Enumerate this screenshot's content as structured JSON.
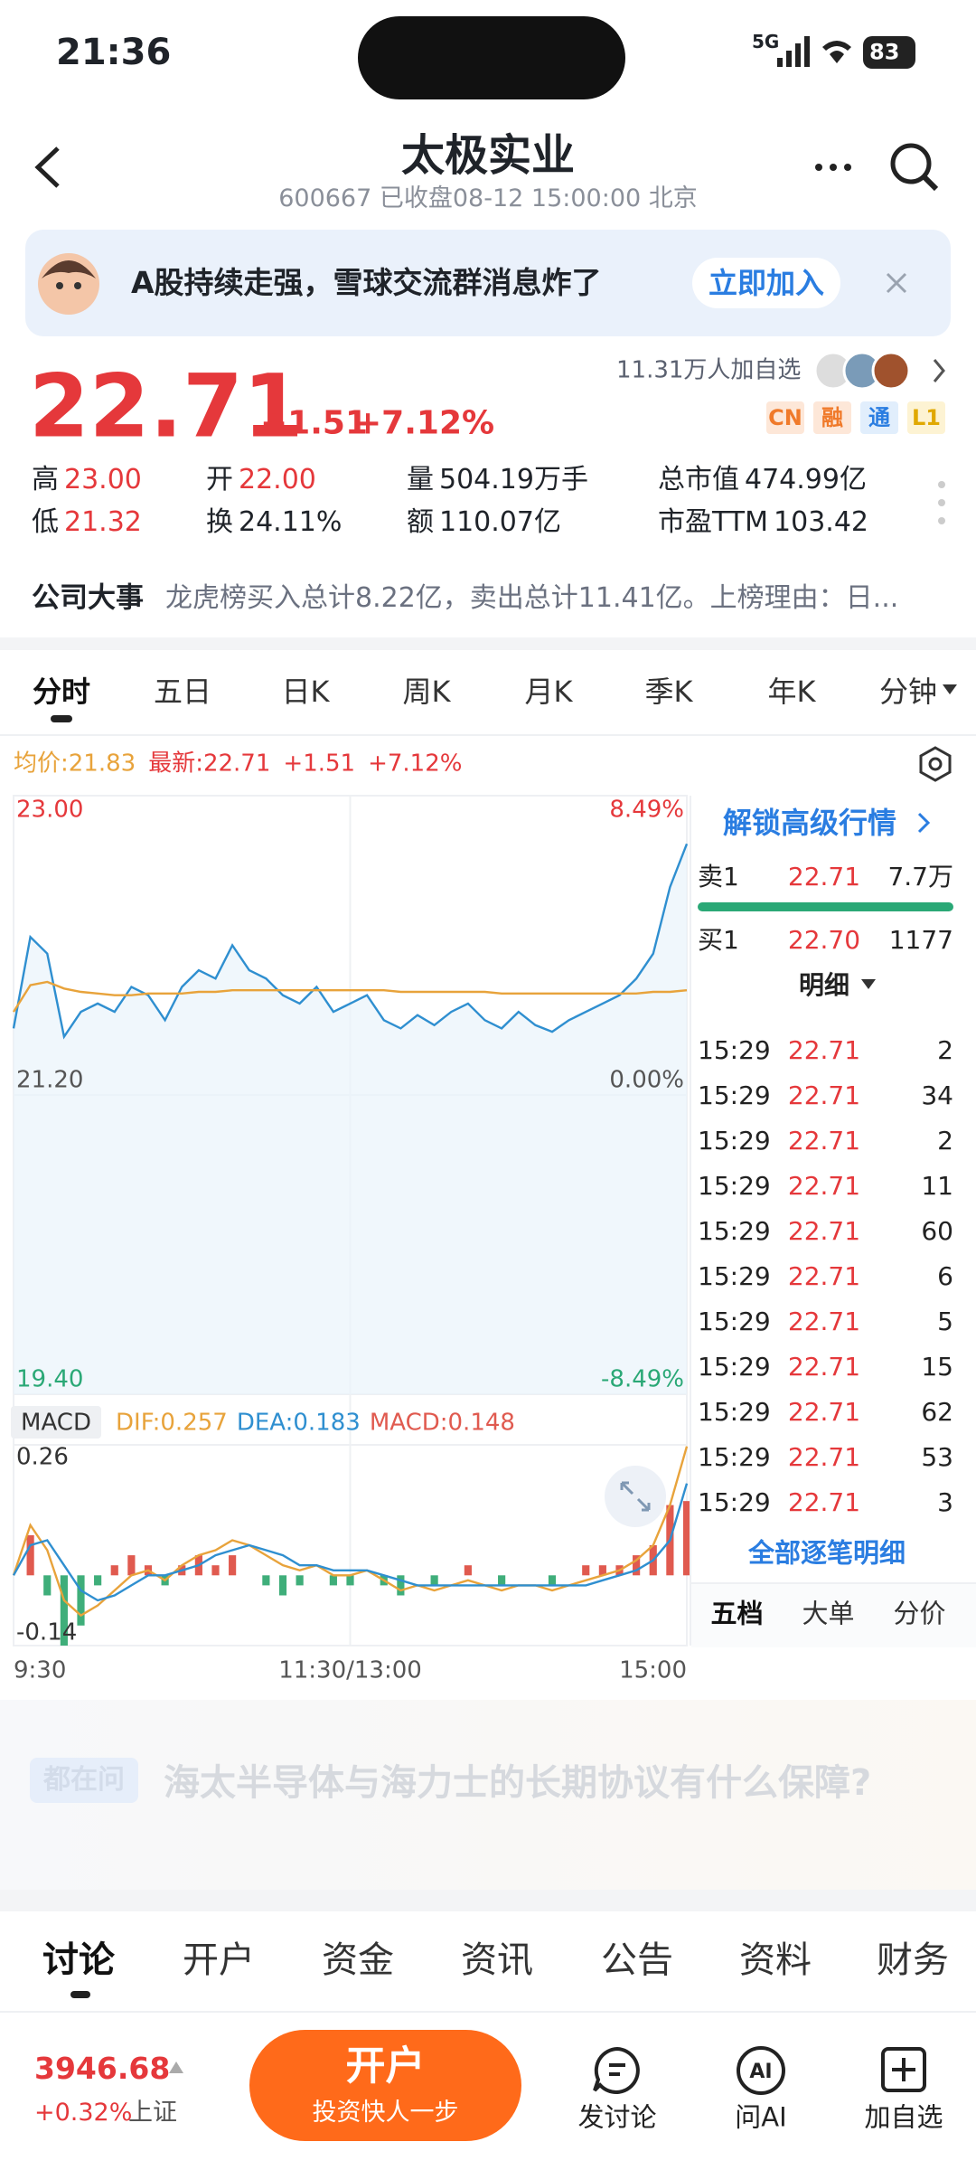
{
  "status_bar": {
    "time": "21:36",
    "network": "5G",
    "battery": "83"
  },
  "header": {
    "title": "太极实业",
    "subtitle": "600667 已收盘08-12 15:00:00 北京"
  },
  "banner": {
    "text": "A股持续走强，雪球交流群消息炸了",
    "button": "立即加入"
  },
  "quote": {
    "price": "22.71",
    "change": "+1.51",
    "change_pct": "+7.12%",
    "followers": "11.31万人加自选",
    "tags": [
      "CN",
      "融",
      "通",
      "L1"
    ]
  },
  "stats": [
    [
      {
        "label": "高",
        "value": "23.00"
      },
      {
        "label": "开",
        "value": "22.00"
      },
      {
        "label": "量",
        "value": "504.19万手"
      },
      {
        "label": "总市值",
        "value": "474.99亿"
      }
    ],
    [
      {
        "label": "低",
        "value": "21.32"
      },
      {
        "label": "换",
        "value": "24.11%"
      },
      {
        "label": "额",
        "value": "110.07亿"
      },
      {
        "label": "市盈TTM",
        "value": "103.42"
      }
    ]
  ],
  "event": {
    "label": "公司大事",
    "text": "龙虎榜买入总计8.22亿，卖出总计11.41亿。上榜理由：日..."
  },
  "period_tabs": [
    "分时",
    "五日",
    "日K",
    "周K",
    "月K",
    "季K",
    "年K",
    "分钟"
  ],
  "chart_data": [
    {
      "type": "line",
      "xlim": [
        0,
        240
      ],
      "xticks": [
        {
          "value": 0,
          "label": "9:30"
        },
        {
          "value": 120,
          "label": "11:30/13:00"
        },
        {
          "value": 240,
          "label": "15:00"
        }
      ],
      "ylim": [
        19.4,
        23.0
      ],
      "yticks": [
        {
          "value": 23.0,
          "label": "23.00"
        },
        {
          "value": 21.2,
          "label": "21.20"
        },
        {
          "value": 19.4,
          "label": "19.40"
        }
      ],
      "y2lim": [
        -8.49,
        8.49
      ],
      "y2ticks": [
        {
          "value": 8.49,
          "label": "8.49%"
        },
        {
          "value": 0,
          "label": "0.00%"
        },
        {
          "value": -8.49,
          "label": "-8.49%"
        }
      ],
      "grid": true,
      "x": [
        0,
        6,
        12,
        18,
        24,
        30,
        36,
        42,
        48,
        54,
        60,
        66,
        72,
        78,
        84,
        90,
        96,
        102,
        108,
        114,
        120,
        126,
        132,
        138,
        144,
        150,
        156,
        162,
        168,
        174,
        180,
        186,
        192,
        198,
        204,
        210,
        216,
        222,
        228,
        234,
        240
      ],
      "series": [
        {
          "name": "最新:22.71",
          "color": "#2f8fd0",
          "values": [
            21.6,
            22.15,
            22.05,
            21.55,
            21.7,
            21.75,
            21.7,
            21.85,
            21.8,
            21.65,
            21.85,
            21.95,
            21.9,
            22.1,
            21.95,
            21.9,
            21.8,
            21.75,
            21.85,
            21.7,
            21.75,
            21.8,
            21.65,
            21.6,
            21.68,
            21.62,
            21.7,
            21.75,
            21.65,
            21.6,
            21.7,
            21.62,
            21.58,
            21.65,
            21.7,
            21.75,
            21.8,
            21.9,
            22.05,
            22.45,
            22.71
          ]
        },
        {
          "name": "均价:21.83",
          "color": "#e8a33b",
          "values": [
            21.7,
            21.86,
            21.88,
            21.84,
            21.82,
            21.81,
            21.8,
            21.8,
            21.81,
            21.81,
            21.81,
            21.82,
            21.82,
            21.83,
            21.83,
            21.83,
            21.83,
            21.83,
            21.83,
            21.83,
            21.83,
            21.83,
            21.83,
            21.82,
            21.82,
            21.82,
            21.82,
            21.82,
            21.82,
            21.81,
            21.81,
            21.81,
            21.81,
            21.81,
            21.81,
            21.81,
            21.81,
            21.81,
            21.82,
            21.82,
            21.83
          ]
        }
      ],
      "legend_extra": [
        "+1.51",
        "+7.12%"
      ]
    },
    {
      "type": "macd",
      "title": "MACD",
      "xlim": [
        0,
        240
      ],
      "ylim": [
        -0.14,
        0.26
      ],
      "yticks": [
        0.26,
        -0.14
      ],
      "x": [
        0,
        6,
        12,
        18,
        24,
        30,
        36,
        42,
        48,
        54,
        60,
        66,
        72,
        78,
        84,
        90,
        96,
        102,
        108,
        114,
        120,
        126,
        132,
        138,
        144,
        150,
        156,
        162,
        168,
        174,
        180,
        186,
        192,
        198,
        204,
        210,
        216,
        222,
        228,
        234,
        240
      ],
      "series": [
        {
          "name": "DIF:0.257",
          "color": "#e8a33b",
          "values": [
            0.0,
            0.1,
            0.05,
            -0.05,
            -0.08,
            -0.06,
            -0.03,
            0.0,
            0.01,
            -0.01,
            0.02,
            0.04,
            0.05,
            0.07,
            0.06,
            0.04,
            0.02,
            0.01,
            0.02,
            0.0,
            0.0,
            0.01,
            -0.01,
            -0.03,
            -0.02,
            -0.03,
            -0.02,
            -0.01,
            -0.02,
            -0.03,
            -0.02,
            -0.02,
            -0.03,
            -0.02,
            -0.01,
            0.0,
            0.01,
            0.03,
            0.06,
            0.14,
            0.257
          ]
        },
        {
          "name": "DEA:0.183",
          "color": "#2f8fd0",
          "values": [
            0.0,
            0.06,
            0.07,
            0.02,
            -0.03,
            -0.05,
            -0.04,
            -0.02,
            0.0,
            0.0,
            0.01,
            0.02,
            0.04,
            0.05,
            0.06,
            0.05,
            0.04,
            0.02,
            0.02,
            0.01,
            0.01,
            0.01,
            0.0,
            -0.01,
            -0.02,
            -0.02,
            -0.02,
            -0.02,
            -0.02,
            -0.02,
            -0.02,
            -0.02,
            -0.02,
            -0.02,
            -0.02,
            -0.01,
            0.0,
            0.01,
            0.03,
            0.07,
            0.183
          ]
        },
        {
          "name": "MACD:0.148",
          "type": "bar",
          "color": "#e05a4f",
          "negative_color": "#3fae7a",
          "values": [
            0.0,
            0.08,
            -0.04,
            -0.14,
            -0.1,
            -0.02,
            0.02,
            0.04,
            0.02,
            -0.02,
            0.02,
            0.04,
            0.02,
            0.04,
            0.0,
            -0.02,
            -0.04,
            -0.02,
            0.0,
            -0.02,
            -0.02,
            0.0,
            -0.02,
            -0.04,
            0.0,
            -0.02,
            0.0,
            0.02,
            0.0,
            -0.02,
            0.0,
            0.0,
            -0.02,
            0.0,
            0.02,
            0.02,
            0.02,
            0.04,
            0.06,
            0.14,
            0.148
          ]
        }
      ]
    }
  ],
  "order_book": {
    "unlock": "解锁高级行情",
    "levels": [
      {
        "side": "卖1",
        "price": "22.71",
        "volume": "7.7万"
      },
      {
        "side": "买1",
        "price": "22.70",
        "volume": "1177"
      }
    ],
    "detail_title": "明细",
    "trades": [
      {
        "time": "15:29",
        "price": "22.71",
        "volume": "2"
      },
      {
        "time": "15:29",
        "price": "22.71",
        "volume": "34"
      },
      {
        "time": "15:29",
        "price": "22.71",
        "volume": "2"
      },
      {
        "time": "15:29",
        "price": "22.71",
        "volume": "11"
      },
      {
        "time": "15:29",
        "price": "22.71",
        "volume": "60"
      },
      {
        "time": "15:29",
        "price": "22.71",
        "volume": "6"
      },
      {
        "time": "15:29",
        "price": "22.71",
        "volume": "5"
      },
      {
        "time": "15:29",
        "price": "22.71",
        "volume": "15"
      },
      {
        "time": "15:29",
        "price": "22.71",
        "volume": "62"
      },
      {
        "time": "15:29",
        "price": "22.71",
        "volume": "53"
      },
      {
        "time": "15:29",
        "price": "22.71",
        "volume": "3"
      }
    ],
    "all_detail": "全部逐笔明细",
    "tabs": [
      "五档",
      "大单",
      "分价"
    ]
  },
  "ask": {
    "tag": "都在问",
    "question": "海太半导体与海力士的长期协议有什么保障?"
  },
  "section_tabs": [
    "讨论",
    "开户",
    "资金",
    "资讯",
    "公告",
    "资料",
    "财务"
  ],
  "bottom_bar": {
    "index_value": "3946.68",
    "index_change": "+0.32%",
    "index_name": "上证",
    "button": "开户",
    "button_sub": "投资快人一步",
    "actions": [
      "发讨论",
      "问AI",
      "加自选"
    ]
  }
}
